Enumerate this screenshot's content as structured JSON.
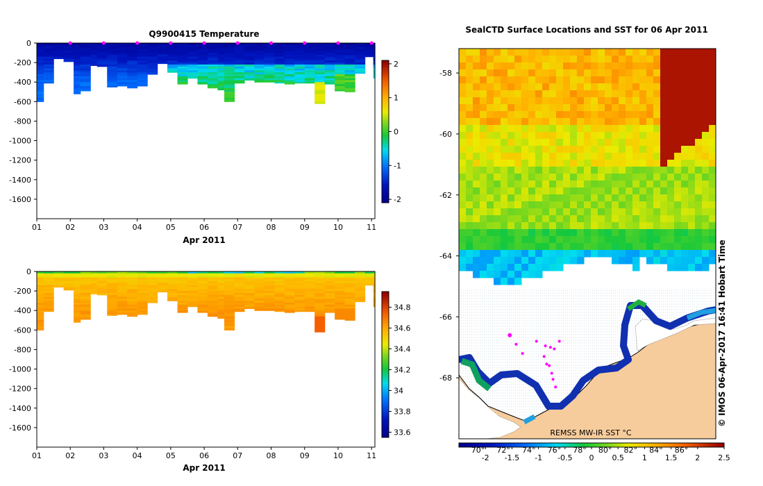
{
  "chart_data": [
    {
      "type": "heatmap",
      "title": "Q9900415  Temperature",
      "xlabel": "Apr 2011",
      "x_ticks": [
        "01",
        "02",
        "03",
        "04",
        "05",
        "06",
        "07",
        "08",
        "09",
        "10",
        "11"
      ],
      "y_ticks": [
        "0",
        "-200",
        "-400",
        "-600",
        "-800",
        "-1000",
        "-1200",
        "-1400",
        "-1600"
      ],
      "ylim": [
        -1800,
        0
      ],
      "xlim": [
        1,
        11.1
      ],
      "colorbar": {
        "min": -2.1,
        "max": 2.1,
        "ticks": [
          "2",
          "1",
          "0",
          "-1",
          "-2"
        ],
        "tick_values": [
          2,
          1,
          0,
          -1,
          -2
        ]
      },
      "profile_markers": [
        2,
        3,
        4,
        5,
        6,
        7,
        8,
        9,
        10,
        11
      ],
      "profiles": [
        {
          "t": 1.0,
          "depth": 600
        },
        {
          "t": 1.2,
          "depth": 410
        },
        {
          "t": 1.5,
          "depth": 160
        },
        {
          "t": 1.8,
          "depth": 190
        },
        {
          "t": 2.1,
          "depth": 520
        },
        {
          "t": 2.3,
          "depth": 490
        },
        {
          "t": 2.6,
          "depth": 230
        },
        {
          "t": 2.8,
          "depth": 240
        },
        {
          "t": 3.1,
          "depth": 450
        },
        {
          "t": 3.4,
          "depth": 440
        },
        {
          "t": 3.7,
          "depth": 460
        },
        {
          "t": 4.0,
          "depth": 440
        },
        {
          "t": 4.3,
          "depth": 320
        },
        {
          "t": 4.6,
          "depth": 210
        },
        {
          "t": 4.9,
          "depth": 300
        },
        {
          "t": 5.2,
          "depth": 420
        },
        {
          "t": 5.5,
          "depth": 360
        },
        {
          "t": 5.8,
          "depth": 420
        },
        {
          "t": 6.1,
          "depth": 460
        },
        {
          "t": 6.4,
          "depth": 480
        },
        {
          "t": 6.6,
          "depth": 600
        },
        {
          "t": 6.9,
          "depth": 410
        },
        {
          "t": 7.2,
          "depth": 380
        },
        {
          "t": 7.5,
          "depth": 400
        },
        {
          "t": 7.8,
          "depth": 400
        },
        {
          "t": 8.1,
          "depth": 410
        },
        {
          "t": 8.4,
          "depth": 420
        },
        {
          "t": 8.7,
          "depth": 410
        },
        {
          "t": 9.0,
          "depth": 410
        },
        {
          "t": 9.3,
          "depth": 620
        },
        {
          "t": 9.6,
          "depth": 420
        },
        {
          "t": 9.9,
          "depth": 490
        },
        {
          "t": 10.2,
          "depth": 500
        },
        {
          "t": 10.5,
          "depth": 310
        },
        {
          "t": 10.8,
          "depth": 140
        },
        {
          "t": 11.05,
          "depth": 360
        }
      ]
    },
    {
      "type": "heatmap",
      "title": "",
      "xlabel": "Apr 2011",
      "x_ticks": [
        "01",
        "02",
        "03",
        "04",
        "05",
        "06",
        "07",
        "08",
        "09",
        "10",
        "11"
      ],
      "y_ticks": [
        "0",
        "-200",
        "-400",
        "-600",
        "-800",
        "-1000",
        "-1200",
        "-1400",
        "-1600"
      ],
      "ylim": [
        -1800,
        0
      ],
      "xlim": [
        1,
        11.1
      ],
      "colorbar": {
        "min": 33.55,
        "max": 34.95,
        "ticks": [
          "34.8",
          "34.6",
          "34.4",
          "34.2",
          "34",
          "33.8",
          "33.6"
        ],
        "tick_values": [
          34.8,
          34.6,
          34.4,
          34.2,
          34.0,
          33.8,
          33.6
        ]
      },
      "profiles_ref": 0
    },
    {
      "type": "heatmap",
      "title": "SealCTD Surface Locations and SST for 06 Apr 2011",
      "y_ticks": [
        "-58",
        "-60",
        "-62",
        "-64",
        "-66",
        "-68"
      ],
      "y_tick_values": [
        -58,
        -60,
        -62,
        -64,
        -66,
        -68
      ],
      "ylim": [
        -70.0,
        -57.2
      ],
      "x_ticks": [
        "70°",
        "72°",
        "74°",
        "76°",
        "78°",
        "80°",
        "82°",
        "84°",
        "86°"
      ],
      "x_tick_values": [
        70,
        72,
        74,
        76,
        78,
        80,
        82,
        84,
        86
      ],
      "xlim": [
        68.5,
        88.7
      ],
      "colorbar": {
        "min": -2.5,
        "max": 2.5,
        "ticks": [
          "-2",
          "-1.5",
          "-1",
          "-0.5",
          "0",
          "0.5",
          "1",
          "1.5",
          "2",
          "2.5"
        ],
        "tick_values": [
          -2,
          -1.5,
          -1,
          -0.5,
          0,
          0.5,
          1,
          1.5,
          2,
          2.5
        ]
      },
      "source_label": "REMSS MW-IR SST °C",
      "credit": "© IMOS 06-Apr-2017 16:41 Hobart Time",
      "seal_positions": [
        {
          "lon": 72.5,
          "lat": -66.6
        },
        {
          "lon": 73.0,
          "lat": -66.9
        },
        {
          "lon": 73.5,
          "lat": -67.2
        },
        {
          "lon": 74.6,
          "lat": -66.8
        },
        {
          "lon": 75.3,
          "lat": -66.95
        },
        {
          "lon": 75.7,
          "lat": -67.0
        },
        {
          "lon": 76.0,
          "lat": -67.05
        },
        {
          "lon": 76.4,
          "lat": -66.8
        },
        {
          "lon": 75.2,
          "lat": -67.3
        },
        {
          "lon": 75.4,
          "lat": -67.55
        },
        {
          "lon": 75.6,
          "lat": -67.6
        },
        {
          "lon": 75.8,
          "lat": -67.85
        },
        {
          "lon": 75.9,
          "lat": -68.05
        },
        {
          "lon": 76.1,
          "lat": -68.3
        }
      ]
    }
  ]
}
